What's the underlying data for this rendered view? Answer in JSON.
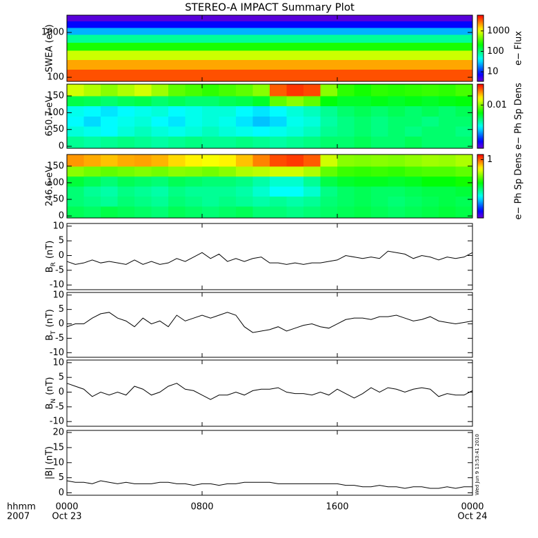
{
  "title": "STEREO-A IMPACT Summary Plot",
  "timestamp": "Wed Jun 9 13:53:41 2010",
  "x_axis": {
    "xlim": [
      0,
      24
    ],
    "xticks": [
      {
        "value": 0,
        "label": "0000"
      },
      {
        "value": 8,
        "label": "0800"
      },
      {
        "value": 16,
        "label": "1600"
      },
      {
        "value": 24,
        "label": "0000"
      }
    ],
    "date_labels": [
      {
        "value": 0,
        "label": "Oct 23"
      },
      {
        "value": 24,
        "label": "Oct 24"
      }
    ],
    "unit_label": "hhmm",
    "year_label": "2007"
  },
  "chart_data": [
    {
      "type": "heatmap",
      "ylabel": "SWEA (eV)",
      "ylog": true,
      "ylim": [
        81,
        2430
      ],
      "yticks": [
        100,
        1000
      ],
      "xbins": [
        0,
        24
      ],
      "ybins": [
        81,
        150,
        250,
        400,
        600,
        900,
        1300,
        1800,
        2430
      ],
      "z": [
        [
          3500
        ],
        [
          2000
        ],
        [
          800
        ],
        [
          250
        ],
        [
          80
        ],
        [
          25
        ],
        [
          8
        ],
        [
          4
        ]
      ],
      "clabel": "e− Flux",
      "clog": true,
      "clim": [
        3.4,
        5900
      ],
      "cticks": [
        10,
        100,
        1000
      ]
    },
    {
      "type": "heatmap",
      "ylabel": "650.7 eV",
      "ylim": [
        -6,
        185
      ],
      "yticks": [
        0,
        50,
        100,
        150
      ],
      "xbins": [
        0,
        1,
        2,
        3,
        4,
        5,
        6,
        7,
        8,
        9,
        10,
        11,
        12,
        13,
        14,
        15,
        16,
        17,
        18,
        19,
        20,
        21,
        22,
        23,
        24
      ],
      "ybins": [
        -6,
        30,
        60,
        90,
        120,
        150,
        185
      ],
      "z": [
        [
          0.005,
          0.0048,
          0.005,
          0.0052,
          0.005,
          0.0048,
          0.005,
          0.0052,
          0.005,
          0.005,
          0.0052,
          0.005,
          0.0048,
          0.005,
          0.0052,
          0.0055,
          0.0055,
          0.0058,
          0.0055,
          0.0055,
          0.0058,
          0.0055,
          0.0055,
          0.0055
        ],
        [
          0.0042,
          0.004,
          0.0038,
          0.0042,
          0.0045,
          0.0042,
          0.004,
          0.0042,
          0.0045,
          0.0042,
          0.004,
          0.0038,
          0.004,
          0.0042,
          0.0045,
          0.005,
          0.0052,
          0.0055,
          0.0052,
          0.0055,
          0.0052,
          0.0055,
          0.0055,
          0.0052
        ],
        [
          0.0038,
          0.0035,
          0.0038,
          0.004,
          0.0042,
          0.0038,
          0.0036,
          0.004,
          0.0042,
          0.004,
          0.0036,
          0.0033,
          0.0035,
          0.004,
          0.0042,
          0.0048,
          0.0052,
          0.0055,
          0.0052,
          0.0055,
          0.0055,
          0.0052,
          0.0055,
          0.0055
        ],
        [
          0.004,
          0.0038,
          0.0036,
          0.0038,
          0.004,
          0.0042,
          0.0038,
          0.004,
          0.0042,
          0.0042,
          0.0038,
          0.0036,
          0.0038,
          0.0042,
          0.0045,
          0.005,
          0.0055,
          0.0058,
          0.0055,
          0.0058,
          0.0055,
          0.0058,
          0.0055,
          0.0058
        ],
        [
          0.006,
          0.0058,
          0.0055,
          0.0058,
          0.006,
          0.0055,
          0.0058,
          0.0055,
          0.0055,
          0.0058,
          0.006,
          0.0065,
          0.009,
          0.01,
          0.009,
          0.007,
          0.0065,
          0.0065,
          0.0068,
          0.0065,
          0.0068,
          0.0065,
          0.0068,
          0.007
        ],
        [
          0.012,
          0.011,
          0.01,
          0.011,
          0.012,
          0.0105,
          0.009,
          0.0085,
          0.008,
          0.0085,
          0.009,
          0.01,
          0.02,
          0.022,
          0.021,
          0.01,
          0.008,
          0.0075,
          0.008,
          0.0078,
          0.008,
          0.0082,
          0.008,
          0.0085
        ]
      ],
      "clabel": "e− Ph Sp Dens",
      "clog": true,
      "clim": [
        0.0015,
        0.025
      ],
      "cticks": [
        0.01
      ]
    },
    {
      "type": "heatmap",
      "ylabel": "246.6 eV",
      "ylim": [
        -6,
        185
      ],
      "yticks": [
        0,
        50,
        100,
        150
      ],
      "xbins": [
        0,
        1,
        2,
        3,
        4,
        5,
        6,
        7,
        8,
        9,
        10,
        11,
        12,
        13,
        14,
        15,
        16,
        17,
        18,
        19,
        20,
        21,
        22,
        23,
        24
      ],
      "ybins": [
        -6,
        30,
        60,
        90,
        120,
        150,
        185
      ],
      "z": [
        [
          0.24,
          0.23,
          0.25,
          0.24,
          0.23,
          0.22,
          0.24,
          0.23,
          0.22,
          0.23,
          0.24,
          0.22,
          0.22,
          0.21,
          0.22,
          0.23,
          0.24,
          0.25,
          0.24,
          0.23,
          0.24,
          0.25,
          0.26,
          0.25
        ],
        [
          0.22,
          0.21,
          0.2,
          0.22,
          0.21,
          0.2,
          0.22,
          0.21,
          0.2,
          0.21,
          0.2,
          0.19,
          0.2,
          0.19,
          0.2,
          0.22,
          0.23,
          0.24,
          0.23,
          0.22,
          0.23,
          0.24,
          0.25,
          0.24
        ],
        [
          0.22,
          0.2,
          0.19,
          0.21,
          0.2,
          0.19,
          0.21,
          0.2,
          0.2,
          0.2,
          0.19,
          0.17,
          0.15,
          0.15,
          0.17,
          0.21,
          0.23,
          0.24,
          0.23,
          0.23,
          0.24,
          0.25,
          0.25,
          0.26
        ],
        [
          0.26,
          0.24,
          0.22,
          0.24,
          0.23,
          0.22,
          0.24,
          0.23,
          0.22,
          0.22,
          0.21,
          0.19,
          0.17,
          0.17,
          0.2,
          0.25,
          0.27,
          0.28,
          0.28,
          0.27,
          0.28,
          0.3,
          0.3,
          0.32
        ],
        [
          0.45,
          0.42,
          0.4,
          0.42,
          0.44,
          0.42,
          0.45,
          0.44,
          0.42,
          0.45,
          0.5,
          0.52,
          0.55,
          0.55,
          0.5,
          0.4,
          0.36,
          0.35,
          0.36,
          0.35,
          0.37,
          0.38,
          0.38,
          0.4
        ],
        [
          0.85,
          0.8,
          0.75,
          0.8,
          0.82,
          0.78,
          0.7,
          0.65,
          0.62,
          0.65,
          0.75,
          0.9,
          1.05,
          1.1,
          1.0,
          0.55,
          0.45,
          0.44,
          0.45,
          0.44,
          0.46,
          0.48,
          0.47,
          0.5
        ]
      ],
      "clabel": "e− Ph Sp Dens",
      "clog": true,
      "clim": [
        0.05,
        1.3
      ],
      "cticks": [
        1
      ]
    },
    {
      "type": "line",
      "ylabel": {
        "text": "B",
        "sub": "R",
        "unit": "(nT)"
      },
      "ylim": [
        -11.6,
        10.9
      ],
      "yticks": [
        -10,
        -5,
        0,
        5,
        10
      ],
      "color": "#000000",
      "x": [
        0,
        0.5,
        1,
        1.5,
        2,
        2.5,
        3,
        3.5,
        4,
        4.5,
        5,
        5.5,
        6,
        6.5,
        7,
        7.5,
        8,
        8.5,
        9,
        9.5,
        10,
        10.5,
        11,
        11.5,
        12,
        12.5,
        13,
        13.5,
        14,
        14.5,
        15,
        15.5,
        16,
        16.5,
        17,
        17.5,
        18,
        18.5,
        19,
        19.5,
        20,
        20.5,
        21,
        21.5,
        22,
        22.5,
        23,
        23.5,
        24
      ],
      "values": [
        -2,
        -3,
        -2.5,
        -1.5,
        -2.5,
        -2,
        -2.5,
        -3,
        -1.5,
        -3,
        -2,
        -3,
        -2.5,
        -1,
        -2,
        -0.5,
        1,
        -1,
        0.5,
        -2,
        -1,
        -2,
        -1,
        -0.5,
        -2.5,
        -2.5,
        -3,
        -2.5,
        -3,
        -2.5,
        -2.5,
        -2,
        -1.5,
        0,
        -0.5,
        -1,
        -0.5,
        -1,
        1.5,
        1,
        0.5,
        -1,
        0,
        -0.5,
        -1.5,
        -0.5,
        -1,
        -0.5,
        1
      ]
    },
    {
      "type": "line",
      "ylabel": {
        "text": "B",
        "sub": "T",
        "unit": "(nT)"
      },
      "ylim": [
        -11.6,
        10.9
      ],
      "yticks": [
        -10,
        -5,
        0,
        5,
        10
      ],
      "color": "#000000",
      "x": [
        0,
        0.5,
        1,
        1.5,
        2,
        2.5,
        3,
        3.5,
        4,
        4.5,
        5,
        5.5,
        6,
        6.5,
        7,
        7.5,
        8,
        8.5,
        9,
        9.5,
        10,
        10.5,
        11,
        11.5,
        12,
        12.5,
        13,
        13.5,
        14,
        14.5,
        15,
        15.5,
        16,
        16.5,
        17,
        17.5,
        18,
        18.5,
        19,
        19.5,
        20,
        20.5,
        21,
        21.5,
        22,
        22.5,
        23,
        23.5,
        24
      ],
      "values": [
        -1,
        0,
        0,
        2,
        3.5,
        4,
        2,
        1,
        -1,
        2,
        0,
        1,
        -1,
        3,
        1,
        2,
        3,
        2,
        3,
        4,
        3,
        -1,
        -3,
        -2.5,
        -2,
        -1,
        -2.5,
        -1.5,
        -0.5,
        0,
        -1,
        -1.5,
        0,
        1.5,
        2,
        2,
        1.5,
        2.5,
        2.5,
        3,
        2,
        1,
        1.5,
        2.5,
        1,
        0.5,
        0,
        0.5,
        1
      ]
    },
    {
      "type": "line",
      "ylabel": {
        "text": "B",
        "sub": "N",
        "unit": "(nT)"
      },
      "ylim": [
        -11.6,
        10.9
      ],
      "yticks": [
        -10,
        -5,
        0,
        5,
        10
      ],
      "color": "#000000",
      "x": [
        0,
        0.5,
        1,
        1.5,
        2,
        2.5,
        3,
        3.5,
        4,
        4.5,
        5,
        5.5,
        6,
        6.5,
        7,
        7.5,
        8,
        8.5,
        9,
        9.5,
        10,
        10.5,
        11,
        11.5,
        12,
        12.5,
        13,
        13.5,
        14,
        14.5,
        15,
        15.5,
        16,
        16.5,
        17,
        17.5,
        18,
        18.5,
        19,
        19.5,
        20,
        20.5,
        21,
        21.5,
        22,
        22.5,
        23,
        23.5,
        24
      ],
      "values": [
        3,
        2,
        1,
        -1.5,
        0,
        -1,
        0,
        -1,
        2,
        1,
        -1,
        0,
        2,
        3,
        1,
        0.5,
        -1,
        -2.5,
        -1,
        -1,
        0,
        -1,
        0.5,
        1,
        1,
        1.5,
        0,
        -0.5,
        -0.5,
        -1,
        0,
        -1,
        1,
        -0.5,
        -2,
        -0.5,
        1.5,
        0,
        1.5,
        1,
        0,
        1,
        1.5,
        1,
        -1.5,
        -0.5,
        -1,
        -1,
        0.5
      ]
    },
    {
      "type": "line",
      "ylabel": "|B| (nT)",
      "ylim": [
        -0.8,
        20.7
      ],
      "yticks": [
        0,
        5,
        10,
        15,
        20
      ],
      "color": "#000000",
      "x": [
        0,
        0.5,
        1,
        1.5,
        2,
        2.5,
        3,
        3.5,
        4,
        4.5,
        5,
        5.5,
        6,
        6.5,
        7,
        7.5,
        8,
        8.5,
        9,
        9.5,
        10,
        10.5,
        11,
        11.5,
        12,
        12.5,
        13,
        13.5,
        14,
        14.5,
        15,
        15.5,
        16,
        16.5,
        17,
        17.5,
        18,
        18.5,
        19,
        19.5,
        20,
        20.5,
        21,
        21.5,
        22,
        22.5,
        23,
        23.5,
        24
      ],
      "values": [
        4,
        3.5,
        3.5,
        3,
        4,
        3.5,
        3,
        3.5,
        3,
        3,
        3,
        3.5,
        3.5,
        3,
        3,
        2.5,
        3,
        3,
        2.5,
        3,
        3,
        3.5,
        3.5,
        3.5,
        3.5,
        3,
        3,
        3,
        3,
        3,
        3,
        3,
        3,
        2.5,
        2.5,
        2,
        2,
        2.5,
        2,
        2,
        1.5,
        2,
        2,
        1.5,
        1.5,
        2,
        1.5,
        2,
        2
      ]
    }
  ]
}
